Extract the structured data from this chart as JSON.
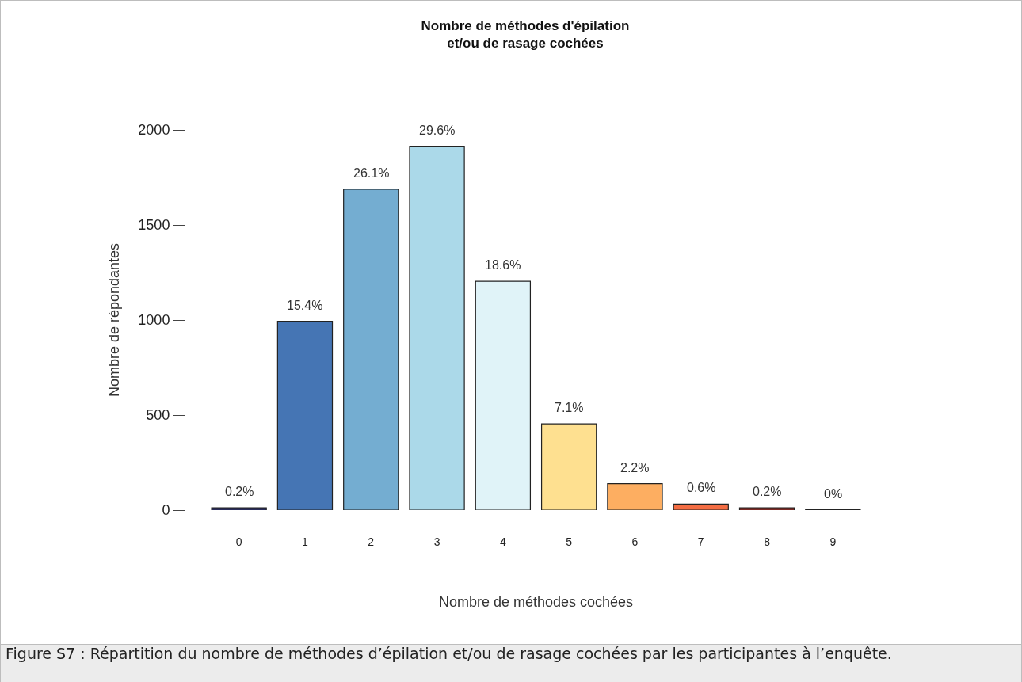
{
  "chart_data": {
    "type": "bar",
    "title": "Nombre de méthodes d'épilation\net/ou de rasage cochées",
    "xlabel": "Nombre de méthodes cochées",
    "ylabel": "Nombre de répondantes",
    "categories": [
      "0",
      "1",
      "2",
      "3",
      "4",
      "5",
      "6",
      "7",
      "8",
      "9"
    ],
    "values": [
      12,
      993,
      1688,
      1914,
      1204,
      454,
      139,
      32,
      12,
      2
    ],
    "colors": [
      "#313695",
      "#4575b4",
      "#74add1",
      "#abd9e9",
      "#e0f3f8",
      "#fee090",
      "#fdae61",
      "#f46d43",
      "#d73027",
      "#a50026"
    ],
    "ylim": [
      0,
      2000
    ],
    "yticks": [
      0,
      500,
      1000,
      1500,
      2000
    ],
    "grid": false,
    "legend": false,
    "annotations": [
      {
        "text": "0.2%",
        "x": "0",
        "y": 12
      },
      {
        "text": "15.4%",
        "x": "1",
        "y": 993
      },
      {
        "text": "26.1%",
        "x": "2",
        "y": 1688
      },
      {
        "text": "29.6%",
        "x": "3",
        "y": 1914
      },
      {
        "text": "18.6%",
        "x": "4",
        "y": 1204
      },
      {
        "text": "7.1%",
        "x": "5",
        "y": 454
      },
      {
        "text": "2.2%",
        "x": "6",
        "y": 139
      },
      {
        "text": "0.6%",
        "x": "7",
        "y": 32
      },
      {
        "text": "0.2%",
        "x": "8",
        "y": 12
      },
      {
        "text": "0%",
        "x": "9",
        "y": 2
      },
      "Figure S7 : Répartition du nombre de méthodes d’épilation et/ou de rasage cochées par les participantes à l’enquête."
    ]
  }
}
